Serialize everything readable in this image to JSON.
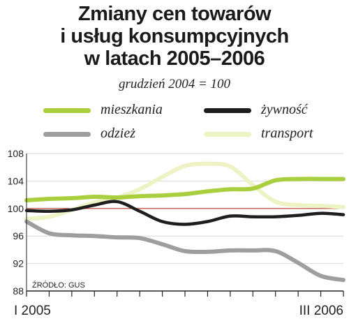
{
  "chart_data": {
    "type": "line",
    "title_lines": [
      "Zmiany cen towarów",
      "i usług konsumpcyjnych",
      "w latach 2005–2006"
    ],
    "subtitle": "grudzień 2004 = 100",
    "source": "ŹRÓDŁO: GUS",
    "x_labels": [
      "I 2005",
      "III 2006"
    ],
    "n_months": 15,
    "ylim": [
      88,
      108
    ],
    "yticks": [
      88,
      92,
      96,
      100,
      104,
      108
    ],
    "reference_line": 100,
    "series": [
      {
        "name": "mieszkania",
        "color": "#a9cf3e",
        "width": 6,
        "values": [
          101.2,
          101.4,
          101.5,
          101.7,
          101.6,
          101.8,
          101.9,
          102.1,
          102.5,
          102.8,
          102.9,
          104.1,
          104.3,
          104.3,
          104.3
        ]
      },
      {
        "name": "żywność",
        "color": "#1e1e1e",
        "width": 4.5,
        "values": [
          99.7,
          99.6,
          99.8,
          100.5,
          101.0,
          99.6,
          98.1,
          97.7,
          98.1,
          98.9,
          98.8,
          98.8,
          99.0,
          99.3,
          99.1
        ]
      },
      {
        "name": "odzież",
        "color": "#9e9e9e",
        "width": 6,
        "values": [
          98.1,
          96.4,
          96.1,
          96.0,
          95.8,
          95.7,
          94.8,
          93.8,
          93.7,
          93.9,
          93.9,
          93.8,
          92.1,
          90.2,
          89.6
        ]
      },
      {
        "name": "transport",
        "color": "#eef3c6",
        "width": 6,
        "values": [
          98.5,
          98.8,
          99.8,
          100.9,
          101.6,
          102.8,
          104.6,
          106.2,
          106.5,
          106.1,
          103.4,
          101.0,
          100.5,
          100.4,
          100.2
        ]
      }
    ],
    "legend": [
      {
        "series": "mieszkania",
        "color": "#a9cf3e"
      },
      {
        "series": "żywność",
        "color": "#1e1e1e"
      },
      {
        "series": "odzież",
        "color": "#9e9e9e"
      },
      {
        "series": "transport",
        "color": "#eef3c6"
      }
    ],
    "colors": {
      "reference_line": "#c0392b",
      "axis": "#222222"
    }
  }
}
